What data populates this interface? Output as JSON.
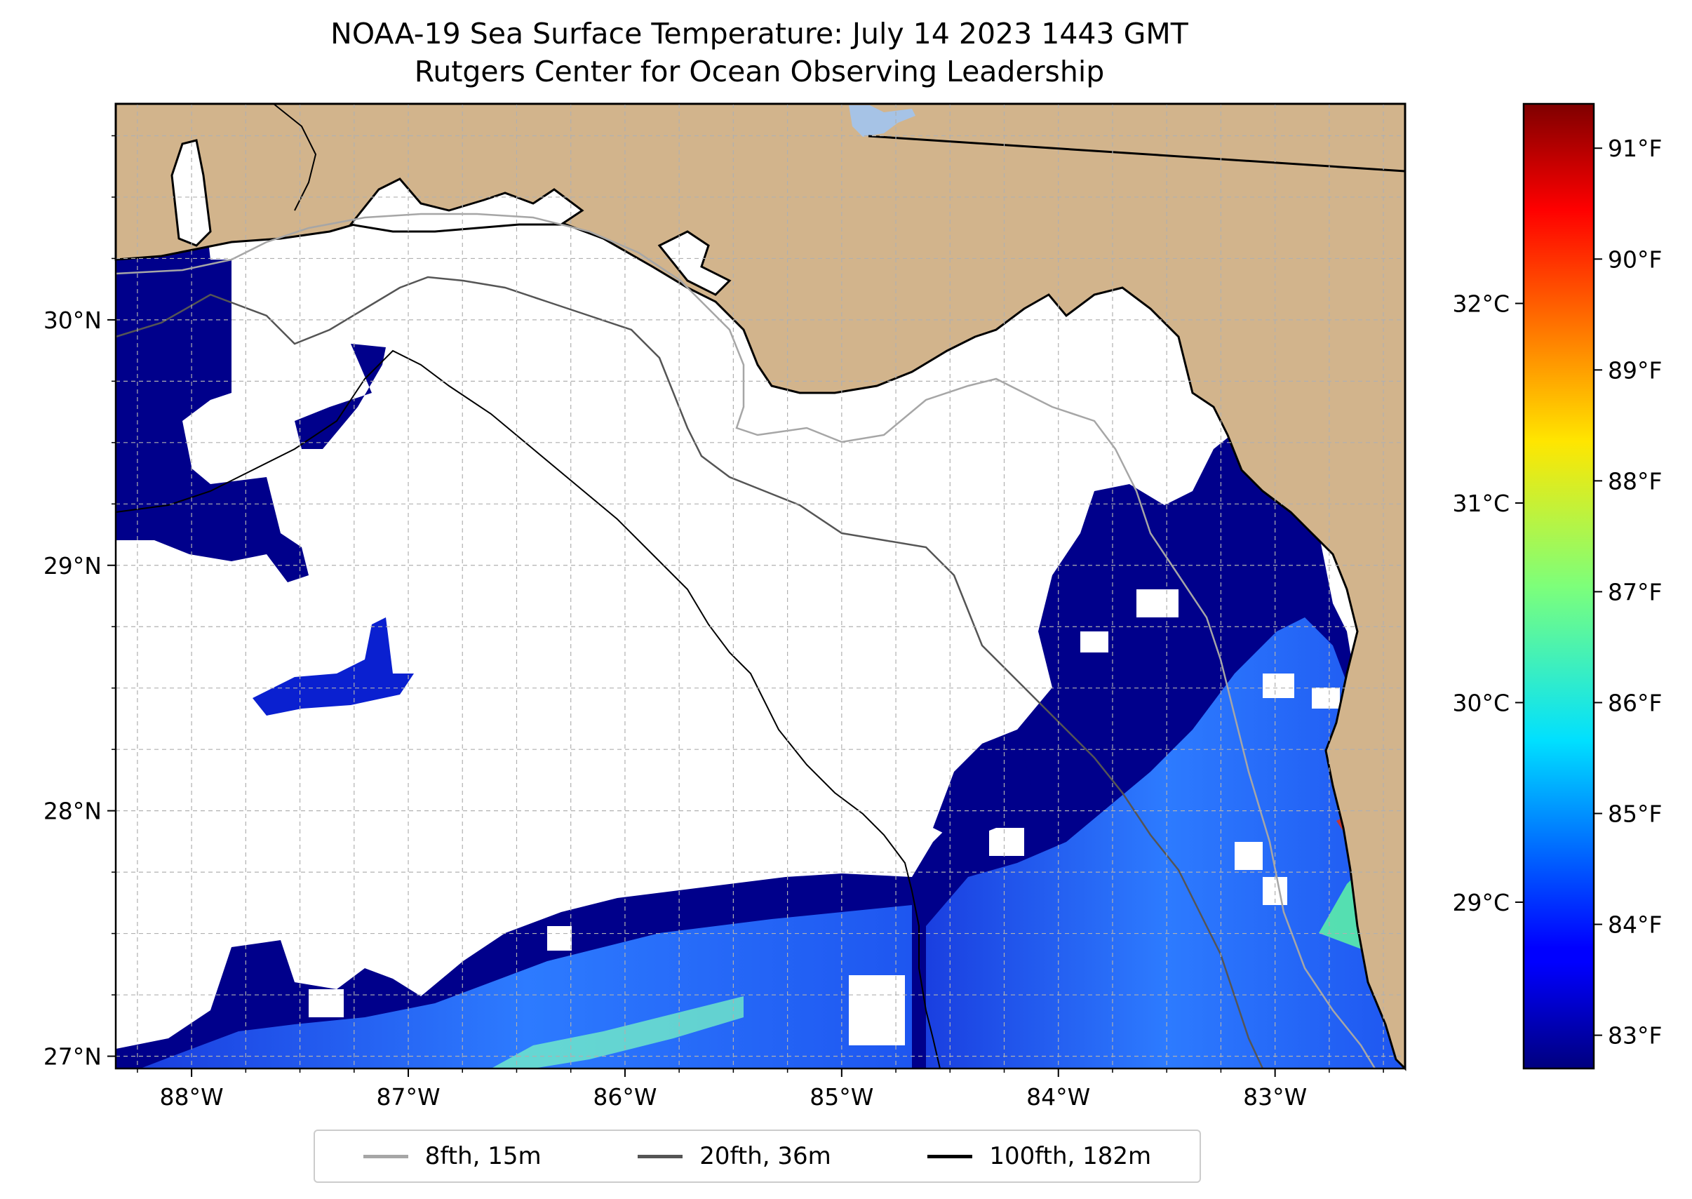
{
  "title": "NOAA-19 Sea Surface Temperature: July 14 2023 1443 GMT",
  "subtitle": "Rutgers Center for Ocean Observing Leadership",
  "colors": {
    "land": "#d2b48c",
    "lake": "#a6c3e6",
    "cloud_mask": "#ffffff",
    "coastline": "#000000",
    "grid": "#b0b0b0"
  },
  "chart_data": {
    "type": "heatmap",
    "map_extent": {
      "lon": [
        -88.35,
        -82.4
      ],
      "lat": [
        26.95,
        30.88
      ]
    },
    "x_ticks": [
      {
        "lon": -88,
        "label": "88°W"
      },
      {
        "lon": -87,
        "label": "87°W"
      },
      {
        "lon": -86,
        "label": "86°W"
      },
      {
        "lon": -85,
        "label": "85°W"
      },
      {
        "lon": -84,
        "label": "84°W"
      },
      {
        "lon": -83,
        "label": "83°W"
      }
    ],
    "y_ticks": [
      {
        "lat": 30,
        "label": "30°N"
      },
      {
        "lat": 29,
        "label": "29°N"
      },
      {
        "lat": 28,
        "label": "28°N"
      },
      {
        "lat": 27,
        "label": "27°N"
      }
    ],
    "grid": true,
    "colorbar": {
      "cmap": "jet",
      "range_F": [
        82.7,
        91.4
      ],
      "ticks_F": [
        {
          "value": 83,
          "label": "83°F"
        },
        {
          "value": 84,
          "label": "84°F"
        },
        {
          "value": 85,
          "label": "85°F"
        },
        {
          "value": 86,
          "label": "86°F"
        },
        {
          "value": 87,
          "label": "87°F"
        },
        {
          "value": 88,
          "label": "88°F"
        },
        {
          "value": 89,
          "label": "89°F"
        },
        {
          "value": 90,
          "label": "90°F"
        },
        {
          "value": 91,
          "label": "91°F"
        }
      ],
      "ticks_C": [
        {
          "value": 29,
          "label": "29°C"
        },
        {
          "value": 30,
          "label": "30°C"
        },
        {
          "value": 31,
          "label": "31°C"
        },
        {
          "value": 32,
          "label": "32°C"
        }
      ]
    },
    "legend": {
      "placement": "bottom-center",
      "entries": [
        {
          "label": "8fth, 15m",
          "color": "#a6a6a6"
        },
        {
          "label": "20fth, 36m",
          "color": "#555555"
        },
        {
          "label": "100fth, 182m",
          "color": "#000000"
        }
      ]
    }
  }
}
